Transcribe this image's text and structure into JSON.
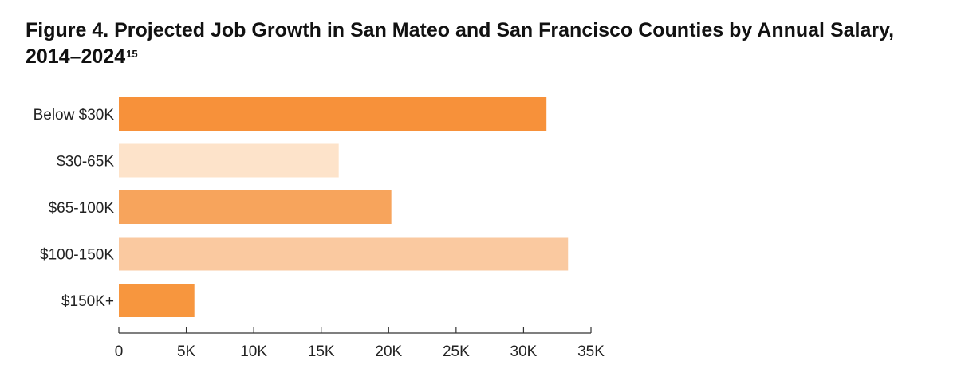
{
  "figure": {
    "title": "Figure 4. Projected Job Growth in San Mateo and San Francisco Counties by Annual Salary,",
    "title_line2": "2014–2024",
    "footnote": "15"
  },
  "chart_data": {
    "type": "bar",
    "orientation": "horizontal",
    "title": "Figure 4. Projected Job Growth in San Mateo and San Francisco Counties by Annual Salary, 2014–2024",
    "categories": [
      "Below $30K",
      "$30-65K",
      "$65-100K",
      "$100-150K",
      "$150K+"
    ],
    "values": [
      31700,
      16300,
      20200,
      33300,
      5600
    ],
    "colors": [
      "#f7913a",
      "#fde3ca",
      "#f7a45c",
      "#fac9a0",
      "#f7963e"
    ],
    "xlim": [
      0,
      35000
    ],
    "xticks": [
      0,
      5000,
      10000,
      15000,
      20000,
      25000,
      30000,
      35000
    ],
    "xtick_labels": [
      "0",
      "5K",
      "10K",
      "15K",
      "20K",
      "25K",
      "30K",
      "35K"
    ],
    "xlabel": "",
    "ylabel": "",
    "grid": false,
    "legend": "none"
  }
}
